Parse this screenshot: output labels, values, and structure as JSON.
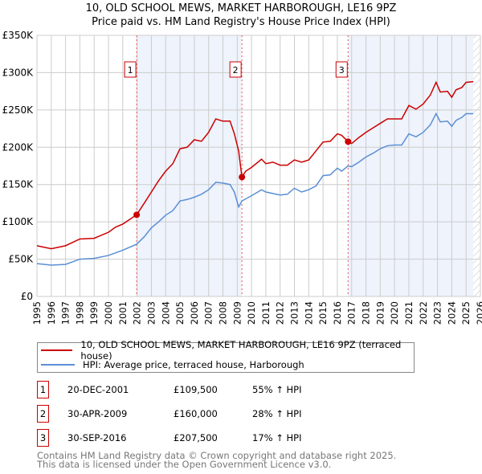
{
  "chart_data": {
    "type": "line",
    "title": "10, OLD SCHOOL MEWS, MARKET HARBOROUGH, LE16 9PZ",
    "subtitle": "Price paid vs. HM Land Registry's House Price Index (HPI)",
    "xlim": [
      1995,
      2026
    ],
    "ylim": [
      0,
      350000
    ],
    "yticks": [
      0,
      50000,
      100000,
      150000,
      200000,
      250000,
      300000,
      350000
    ],
    "ytick_labels": [
      "£0",
      "£50K",
      "£100K",
      "£150K",
      "£200K",
      "£250K",
      "£300K",
      "£350K"
    ],
    "xticks": [
      "1995",
      "1996",
      "1997",
      "1998",
      "1999",
      "2000",
      "2001",
      "2002",
      "2003",
      "2004",
      "2005",
      "2006",
      "2007",
      "2008",
      "2009",
      "2010",
      "2011",
      "2012",
      "2013",
      "2014",
      "2015",
      "2016",
      "2017",
      "2018",
      "2019",
      "2020",
      "2021",
      "2022",
      "2023",
      "2024",
      "2025",
      "2026"
    ],
    "grid": true,
    "shaded_periods": [
      [
        2001.97,
        2009.33
      ],
      [
        2016.75,
        2025.5
      ]
    ],
    "forecast_hatch_from": 2025.5,
    "series": [
      {
        "name": "10, OLD SCHOOL MEWS, MARKET HARBOROUGH, LE16 9PZ (terraced house)",
        "color": "#cc0000",
        "x": [
          1995,
          1996,
          1997,
          1998,
          1999,
          2000,
          2000.5,
          2001,
          2001.97,
          2002.5,
          2003,
          2003.5,
          2004,
          2004.5,
          2005,
          2005.5,
          2006,
          2006.5,
          2007,
          2007.5,
          2008,
          2008.5,
          2008.8,
          2009.1,
          2009.33,
          2009.6,
          2010,
          2010.7,
          2011,
          2011.5,
          2012,
          2012.5,
          2013,
          2013.5,
          2014,
          2014.5,
          2015,
          2015.5,
          2016,
          2016.3,
          2016.75,
          2017,
          2017.5,
          2018,
          2018.5,
          2019,
          2019.5,
          2020,
          2020.5,
          2021,
          2021.5,
          2022,
          2022.5,
          2022.9,
          2023.2,
          2023.7,
          2024,
          2024.3,
          2024.7,
          2025,
          2025.5
        ],
        "y": [
          68,
          64,
          68,
          77,
          78,
          86,
          93,
          97,
          109.5,
          125,
          140,
          155,
          168,
          178,
          198,
          200,
          210,
          208,
          220,
          238,
          235,
          235,
          218,
          195,
          160,
          168,
          173,
          184,
          178,
          180,
          176,
          176,
          183,
          180,
          183,
          195,
          207,
          208,
          218,
          216,
          207.5,
          205,
          213,
          220,
          226,
          232,
          238,
          238,
          238,
          256,
          251,
          258,
          270,
          287,
          274,
          275,
          267,
          277,
          280,
          287,
          288
        ]
      },
      {
        "name": "HPI: Average price, terraced house, Harborough",
        "color": "#5b8fd4",
        "x": [
          1995,
          1996,
          1997,
          1998,
          1999,
          2000,
          2001,
          2001.97,
          2002.5,
          2003,
          2003.5,
          2004,
          2004.5,
          2005,
          2005.5,
          2006,
          2006.5,
          2007,
          2007.5,
          2008,
          2008.5,
          2008.8,
          2009.1,
          2009.33,
          2010,
          2010.7,
          2011,
          2012,
          2012.5,
          2013,
          2013.5,
          2014,
          2014.5,
          2015,
          2015.5,
          2016,
          2016.3,
          2016.75,
          2017,
          2017.5,
          2018,
          2018.5,
          2019,
          2019.5,
          2020,
          2020.5,
          2021,
          2021.5,
          2022,
          2022.5,
          2022.9,
          2023.2,
          2023.7,
          2024,
          2024.3,
          2024.7,
          2025,
          2025.5
        ],
        "y": [
          44,
          42,
          43,
          50,
          51,
          55,
          62,
          70,
          80,
          92,
          100,
          109,
          115,
          128,
          130,
          133,
          137,
          143,
          153,
          152,
          150,
          140,
          120,
          128,
          135,
          143,
          140,
          136,
          137,
          145,
          140,
          143,
          148,
          162,
          163,
          172,
          168,
          175,
          174,
          180,
          187,
          192,
          198,
          202,
          203,
          203,
          218,
          214,
          220,
          230,
          245,
          234,
          235,
          228,
          236,
          240,
          245,
          245
        ]
      }
    ],
    "y_units": "thousands GBP",
    "sales": [
      {
        "label": "1",
        "x": 2001.97,
        "price": 109500,
        "date": "20-DEC-2001",
        "price_text": "£109,500",
        "hpi": "55% ↑ HPI"
      },
      {
        "label": "2",
        "x": 2009.33,
        "price": 160000,
        "date": "30-APR-2009",
        "price_text": "£160,000",
        "hpi": "28% ↑ HPI"
      },
      {
        "label": "3",
        "x": 2016.75,
        "price": 207500,
        "date": "30-SEP-2016",
        "price_text": "£207,500",
        "hpi": "17% ↑ HPI"
      }
    ]
  },
  "footer": [
    "Contains HM Land Registry data © Crown copyright and database right 2025.",
    "This data is licensed under the Open Government Licence v3.0."
  ]
}
